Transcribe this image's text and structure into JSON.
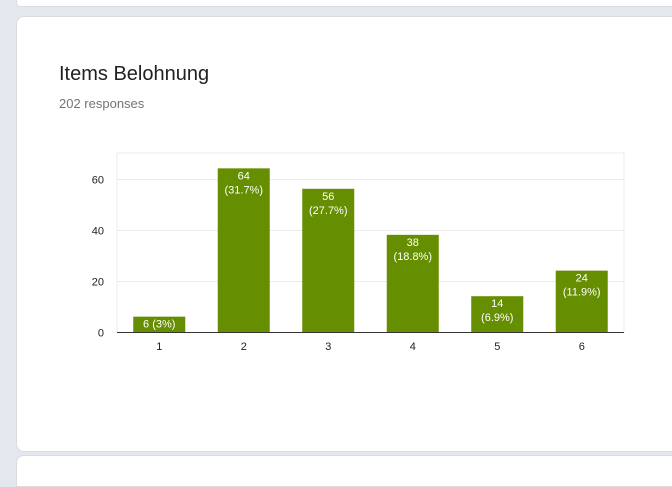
{
  "form": {
    "question_title": "Items Belohnung",
    "response_count": "202 responses"
  },
  "colors": {
    "bar": "#668e01",
    "grid": "#ebebeb",
    "axis": "#333333"
  },
  "chart_data": {
    "type": "bar",
    "title": "Items Belohnung",
    "subtitle": "202 responses",
    "categories": [
      "1",
      "2",
      "3",
      "4",
      "5",
      "6"
    ],
    "values": [
      6,
      64,
      56,
      38,
      14,
      24
    ],
    "data_labels": [
      "6 (3%)",
      "64 (31.7%)",
      "56 (27.7%)",
      "38 (18.8%)",
      "14 (6.9%)",
      "24 (11.9%)"
    ],
    "yticks": [
      0,
      20,
      40,
      60
    ],
    "ylim": [
      0,
      70
    ],
    "xlabel": "",
    "ylabel": "",
    "grid": true,
    "legend": "none"
  }
}
